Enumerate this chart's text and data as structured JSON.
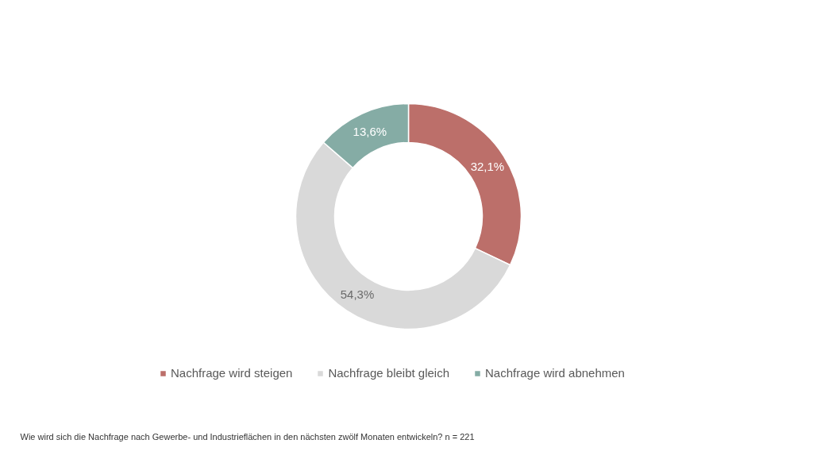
{
  "chart_data": {
    "type": "donut",
    "categories": [
      "Nachfrage wird steigen",
      "Nachfrage bleibt gleich",
      "Nachfrage wird abnehmen"
    ],
    "values": [
      32.1,
      54.3,
      13.6
    ],
    "colors": [
      "#bc6f6a",
      "#d9d9d9",
      "#85aca5"
    ],
    "value_labels": [
      "32,1%",
      "54,3%",
      "13,6%"
    ],
    "legend": "bottom",
    "annotations": [
      "Wie wird sich die Nachfrage nach Gewerbe- und Industrieflächen in den nächsten zwölf Monaten entwickeln? n = 221"
    ]
  }
}
